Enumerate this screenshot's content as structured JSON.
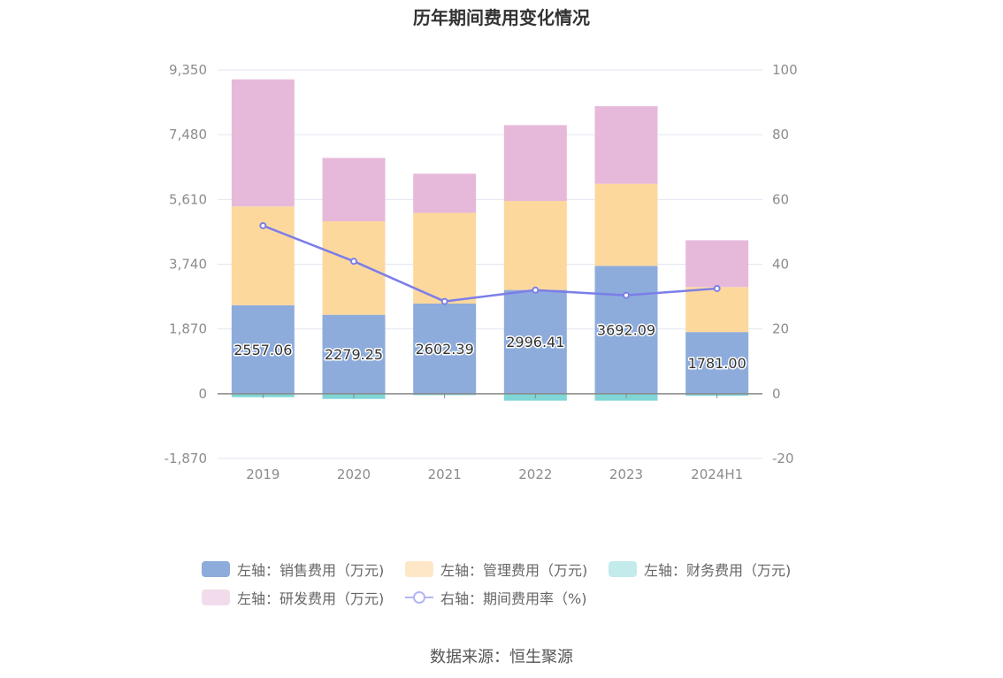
{
  "title": "历年期间费用变化情况",
  "source": "数据来源：恒生聚源",
  "colors": {
    "sales": "#8eacdb",
    "admin": "#fdd89d",
    "finance": "#7fd6d6",
    "rd": "#e6b9da",
    "rate": "#7b7ee8",
    "grid": "#e3e6f0",
    "zero": "#888888"
  },
  "legend": [
    {
      "key": "sales",
      "label": "左轴：销售费用（万元)",
      "swatch": "#8eacdb",
      "type": "bar"
    },
    {
      "key": "admin",
      "label": "左轴：管理费用（万元)",
      "swatch": "#fde7c6",
      "type": "bar"
    },
    {
      "key": "finance",
      "label": "左轴：财务费用（万元)",
      "swatch": "#c3ebeb",
      "type": "bar"
    },
    {
      "key": "rd",
      "label": "左轴：研发费用（万元)",
      "swatch": "#f2dcec",
      "type": "bar"
    },
    {
      "key": "rate",
      "label": "右轴：期间费用率（%)",
      "swatch": "#b3b5f2",
      "type": "line"
    }
  ],
  "chart_data": {
    "type": "bar",
    "stacked": true,
    "title": "历年期间费用变化情况",
    "categories": [
      "2019",
      "2020",
      "2021",
      "2022",
      "2023",
      "2024H1"
    ],
    "left_axis": {
      "min": -1870,
      "max": 9350,
      "ticks": [
        -1870,
        0,
        1870,
        3740,
        5610,
        7480,
        9350
      ],
      "tick_labels": [
        "-1,870",
        "0",
        "1,870",
        "3,740",
        "5,610",
        "7,480",
        "9,350"
      ]
    },
    "right_axis": {
      "min": -20,
      "max": 100,
      "ticks": [
        -20,
        0,
        20,
        40,
        60,
        80,
        100
      ],
      "tick_labels": [
        "-20",
        "0",
        "20",
        "40",
        "60",
        "80",
        "100"
      ]
    },
    "series": [
      {
        "key": "sales",
        "name": "左轴：销售费用（万元)",
        "axis": "left",
        "values": [
          2557.06,
          2279.25,
          2602.39,
          2996.41,
          3692.09,
          1781.0
        ],
        "labels": [
          "2557.06",
          "2279.25",
          "2602.39",
          "2996.41",
          "3692.09",
          "1781.00"
        ]
      },
      {
        "key": "admin",
        "name": "左轴：管理费用（万元)",
        "axis": "left",
        "values": [
          2850,
          2700,
          2620,
          2570,
          2370,
          1300
        ]
      },
      {
        "key": "finance",
        "name": "左轴：财务费用（万元)",
        "axis": "left",
        "values": [
          -100,
          -150,
          -40,
          -200,
          -200,
          -60
        ]
      },
      {
        "key": "rd",
        "name": "左轴：研发费用（万元)",
        "axis": "left",
        "values": [
          3670,
          1830,
          1130,
          2190,
          2240,
          1350
        ]
      },
      {
        "key": "rate",
        "name": "右轴：期间费用率（%)",
        "axis": "right",
        "type": "line",
        "values": [
          51.9,
          40.9,
          28.5,
          32.0,
          30.4,
          32.5
        ]
      }
    ]
  }
}
